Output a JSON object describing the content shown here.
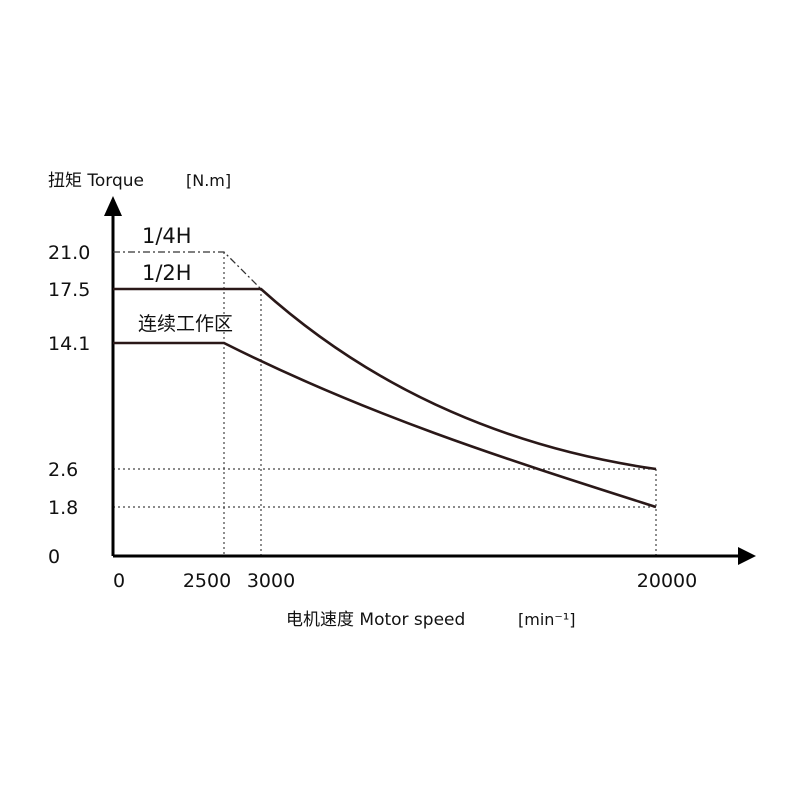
{
  "chart_data": {
    "type": "line",
    "ylabel": "扭矩 Torque",
    "yunit": "[N.m]",
    "xlabel": "电机速度 Motor speed",
    "xunit": "[min⁻¹]",
    "xlim": [
      0,
      20000
    ],
    "ylim": [
      0,
      21.0
    ],
    "xticks": [
      "0",
      "2500",
      "3000",
      "20000"
    ],
    "yticks": [
      "0",
      "1.8",
      "2.6",
      "14.1",
      "17.5",
      "21.0"
    ],
    "curve_labels": {
      "quarter_h": "1/4H",
      "half_h": "1/2H",
      "continuous": "连续工作区"
    },
    "series": [
      {
        "key": "quarter_h",
        "style": "dash-dot",
        "points": [
          [
            0,
            21.0
          ],
          [
            2500,
            21.0
          ],
          [
            3000,
            17.5
          ]
        ]
      },
      {
        "key": "half_h",
        "style": "solid",
        "points": [
          [
            0,
            17.5
          ],
          [
            3000,
            17.5
          ],
          [
            20000,
            2.6
          ]
        ]
      },
      {
        "key": "continuous",
        "style": "solid",
        "points": [
          [
            0,
            14.1
          ],
          [
            2500,
            14.1
          ],
          [
            20000,
            1.8
          ]
        ]
      }
    ],
    "reference_lines": {
      "vertical": [
        2500,
        3000,
        20000
      ],
      "horizontal": [
        2.6,
        1.8
      ]
    },
    "grid": false,
    "line_color": "#2a1818"
  }
}
